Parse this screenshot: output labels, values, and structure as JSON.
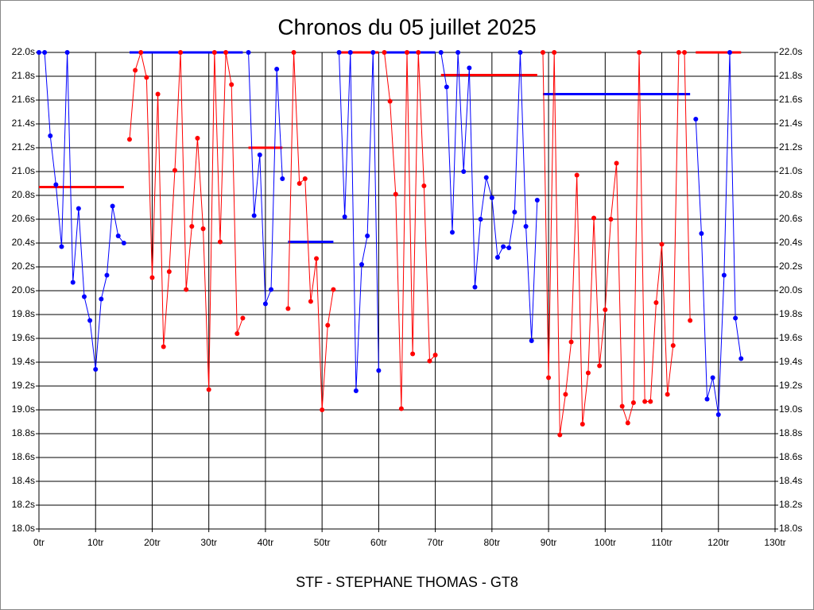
{
  "chart_data": {
    "type": "line",
    "title": "Chronos du 05 juillet 2025",
    "footer": "STF - STEPHANE THOMAS - GT8",
    "xlim": [
      0,
      130
    ],
    "ylim": [
      18.0,
      22.0
    ],
    "xticks": [
      {
        "value": 0,
        "label": "0tr"
      },
      {
        "value": 10,
        "label": "10tr"
      },
      {
        "value": 20,
        "label": "20tr"
      },
      {
        "value": 30,
        "label": "30tr"
      },
      {
        "value": 40,
        "label": "40tr"
      },
      {
        "value": 50,
        "label": "50tr"
      },
      {
        "value": 60,
        "label": "60tr"
      },
      {
        "value": 70,
        "label": "70tr"
      },
      {
        "value": 80,
        "label": "80tr"
      },
      {
        "value": 90,
        "label": "90tr"
      },
      {
        "value": 100,
        "label": "100tr"
      },
      {
        "value": 110,
        "label": "110tr"
      },
      {
        "value": 120,
        "label": "120tr"
      },
      {
        "value": 130,
        "label": "130tr"
      }
    ],
    "yticks": [
      {
        "value": 18.0,
        "label": "18.0s"
      },
      {
        "value": 18.2,
        "label": "18.2s"
      },
      {
        "value": 18.4,
        "label": "18.4s"
      },
      {
        "value": 18.6,
        "label": "18.6s"
      },
      {
        "value": 18.8,
        "label": "18.8s"
      },
      {
        "value": 19.0,
        "label": "19.0s"
      },
      {
        "value": 19.2,
        "label": "19.2s"
      },
      {
        "value": 19.4,
        "label": "19.4s"
      },
      {
        "value": 19.6,
        "label": "19.6s"
      },
      {
        "value": 19.8,
        "label": "19.8s"
      },
      {
        "value": 20.0,
        "label": "20.0s"
      },
      {
        "value": 20.2,
        "label": "20.2s"
      },
      {
        "value": 20.4,
        "label": "20.4s"
      },
      {
        "value": 20.6,
        "label": "20.6s"
      },
      {
        "value": 20.8,
        "label": "20.8s"
      },
      {
        "value": 21.0,
        "label": "21.0s"
      },
      {
        "value": 21.2,
        "label": "21.2s"
      },
      {
        "value": 21.4,
        "label": "21.4s"
      },
      {
        "value": 21.6,
        "label": "21.6s"
      },
      {
        "value": 21.8,
        "label": "21.8s"
      },
      {
        "value": 22.0,
        "label": "22.0s"
      }
    ],
    "grid": true,
    "series": [
      {
        "color": "#0000ff",
        "x": [
          0,
          1,
          2,
          3,
          4,
          5,
          6,
          7,
          8,
          9,
          10,
          11,
          12,
          13,
          14,
          15
        ],
        "values": [
          22.0,
          22.0,
          21.3,
          20.89,
          20.37,
          22.0,
          20.07,
          20.69,
          19.95,
          19.75,
          19.34,
          19.93,
          20.13,
          20.71,
          20.46,
          20.4
        ],
        "average": {
          "color": "#ff0000",
          "value": 20.87,
          "x": [
            0,
            15
          ]
        }
      },
      {
        "color": "#ff0000",
        "x": [
          16,
          17,
          18,
          19,
          20,
          21,
          22,
          23,
          24,
          25,
          26,
          27,
          28,
          29,
          30,
          31,
          32,
          33,
          34,
          35,
          36
        ],
        "values": [
          21.27,
          21.85,
          22.0,
          21.79,
          20.11,
          21.65,
          19.53,
          20.16,
          21.01,
          22.0,
          20.01,
          20.54,
          21.28,
          20.52,
          19.17,
          22.0,
          20.41,
          22.0,
          21.73,
          19.64,
          19.77
        ],
        "average": {
          "color": "#0000ff",
          "value": 22.0,
          "x": [
            16,
            36
          ]
        }
      },
      {
        "color": "#0000ff",
        "x": [
          37,
          38,
          39,
          40,
          41,
          42,
          43
        ],
        "values": [
          22.0,
          20.63,
          21.14,
          19.89,
          20.01,
          21.86,
          20.94
        ],
        "average": {
          "color": "#ff0000",
          "value": 21.2,
          "x": [
            37,
            43
          ]
        }
      },
      {
        "color": "#ff0000",
        "x": [
          44,
          45,
          46,
          47,
          48,
          49,
          50,
          51,
          52
        ],
        "values": [
          19.85,
          22.0,
          20.9,
          20.94,
          19.91,
          20.27,
          19.0,
          19.71,
          20.01
        ],
        "average": {
          "color": "#0000ff",
          "value": 20.41,
          "x": [
            44,
            52
          ]
        }
      },
      {
        "color": "#0000ff",
        "x": [
          53,
          54,
          55,
          56,
          57,
          58,
          59,
          60
        ],
        "values": [
          22.0,
          20.62,
          22.0,
          19.16,
          20.22,
          20.46,
          22.0,
          19.33
        ],
        "average": {
          "color": "#ff0000",
          "value": 22.0,
          "x": [
            53,
            60
          ]
        }
      },
      {
        "color": "#ff0000",
        "x": [
          61,
          62,
          63,
          64,
          65,
          66,
          67,
          68,
          69,
          70
        ],
        "values": [
          22.0,
          21.59,
          20.81,
          19.01,
          22.0,
          19.47,
          22.0,
          20.88,
          19.41,
          19.46
        ],
        "average": {
          "color": "#0000ff",
          "value": 22.0,
          "x": [
            61,
            70
          ]
        }
      },
      {
        "color": "#0000ff",
        "x": [
          71,
          72,
          73,
          74,
          75,
          76,
          77,
          78,
          79,
          80,
          81,
          82,
          83,
          84,
          85,
          86,
          87,
          88
        ],
        "values": [
          22.0,
          21.71,
          20.49,
          22.0,
          21.0,
          21.87,
          20.03,
          20.6,
          20.95,
          20.78,
          20.28,
          20.37,
          20.36,
          20.66,
          22.0,
          20.54,
          19.58,
          20.76
        ],
        "average": {
          "color": "#ff0000",
          "value": 21.81,
          "x": [
            71,
            88
          ]
        }
      },
      {
        "color": "#ff0000",
        "x": [
          89,
          90,
          91,
          92,
          93,
          94,
          95,
          96,
          97,
          98,
          99,
          100,
          101,
          102,
          103,
          104,
          105,
          106,
          107,
          108,
          109,
          110,
          111,
          112,
          113,
          114,
          115
        ],
        "values": [
          22.0,
          19.27,
          22.0,
          18.79,
          19.13,
          19.57,
          20.97,
          18.88,
          19.31,
          20.61,
          19.37,
          19.84,
          20.6,
          21.07,
          19.03,
          18.89,
          19.06,
          22.0,
          19.07,
          19.07,
          19.9,
          20.39,
          19.13,
          19.54,
          22.0,
          22.0,
          19.75
        ],
        "average": {
          "color": "#0000ff",
          "value": 21.65,
          "x": [
            89,
            115
          ]
        }
      },
      {
        "color": "#0000ff",
        "x": [
          116,
          117,
          118,
          119,
          120,
          121,
          122,
          123,
          124
        ],
        "values": [
          21.44,
          20.48,
          19.09,
          19.27,
          18.96,
          20.13,
          22.0,
          19.77,
          19.43
        ],
        "average": {
          "color": "#ff0000",
          "value": 22.0,
          "x": [
            116,
            124
          ]
        }
      }
    ]
  }
}
